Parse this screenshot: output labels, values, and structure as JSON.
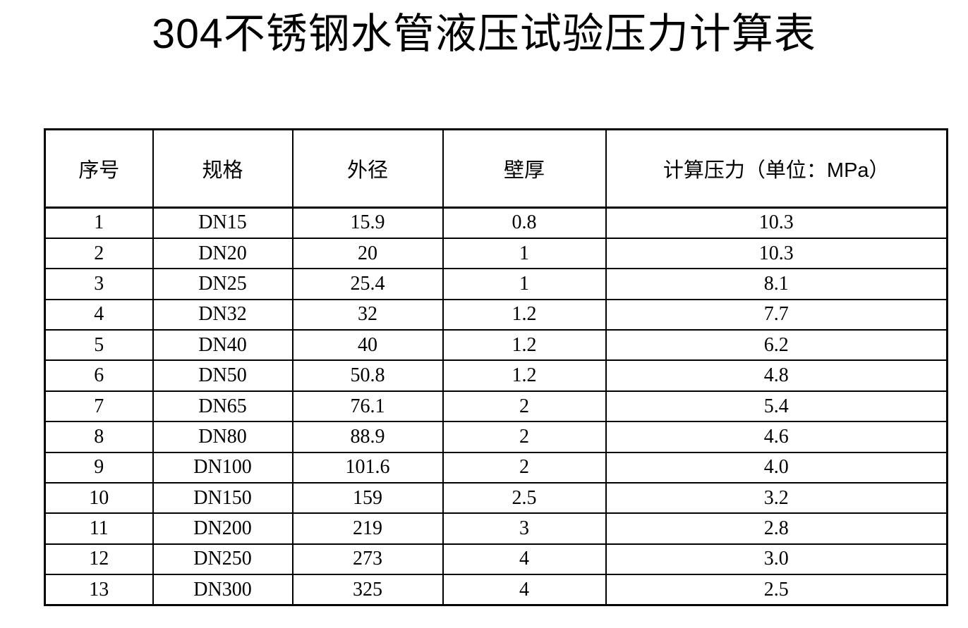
{
  "page": {
    "title": "304不锈钢水管液压试验压力计算表"
  },
  "colors": {
    "background": "#ffffff",
    "text": "#000000",
    "border": "#000000"
  },
  "table": {
    "columns": [
      {
        "key": "index",
        "label": "序号"
      },
      {
        "key": "spec",
        "label": "规格"
      },
      {
        "key": "outer_diameter",
        "label": "外径"
      },
      {
        "key": "wall_thickness",
        "label": "壁厚"
      },
      {
        "key": "pressure",
        "label": "计算压力（单位：MPa）"
      }
    ],
    "rows": [
      [
        "1",
        "DN15",
        "15.9",
        "0.8",
        "10.3"
      ],
      [
        "2",
        "DN20",
        "20",
        "1",
        "10.3"
      ],
      [
        "3",
        "DN25",
        "25.4",
        "1",
        "8.1"
      ],
      [
        "4",
        "DN32",
        "32",
        "1.2",
        "7.7"
      ],
      [
        "5",
        "DN40",
        "40",
        "1.2",
        "6.2"
      ],
      [
        "6",
        "DN50",
        "50.8",
        "1.2",
        "4.8"
      ],
      [
        "7",
        "DN65",
        "76.1",
        "2",
        "5.4"
      ],
      [
        "8",
        "DN80",
        "88.9",
        "2",
        "4.6"
      ],
      [
        "9",
        "DN100",
        "101.6",
        "2",
        "4.0"
      ],
      [
        "10",
        "DN150",
        "159",
        "2.5",
        "3.2"
      ],
      [
        "11",
        "DN200",
        "219",
        "3",
        "2.8"
      ],
      [
        "12",
        "DN250",
        "273",
        "4",
        "3.0"
      ],
      [
        "13",
        "DN300",
        "325",
        "4",
        "2.5"
      ]
    ]
  }
}
